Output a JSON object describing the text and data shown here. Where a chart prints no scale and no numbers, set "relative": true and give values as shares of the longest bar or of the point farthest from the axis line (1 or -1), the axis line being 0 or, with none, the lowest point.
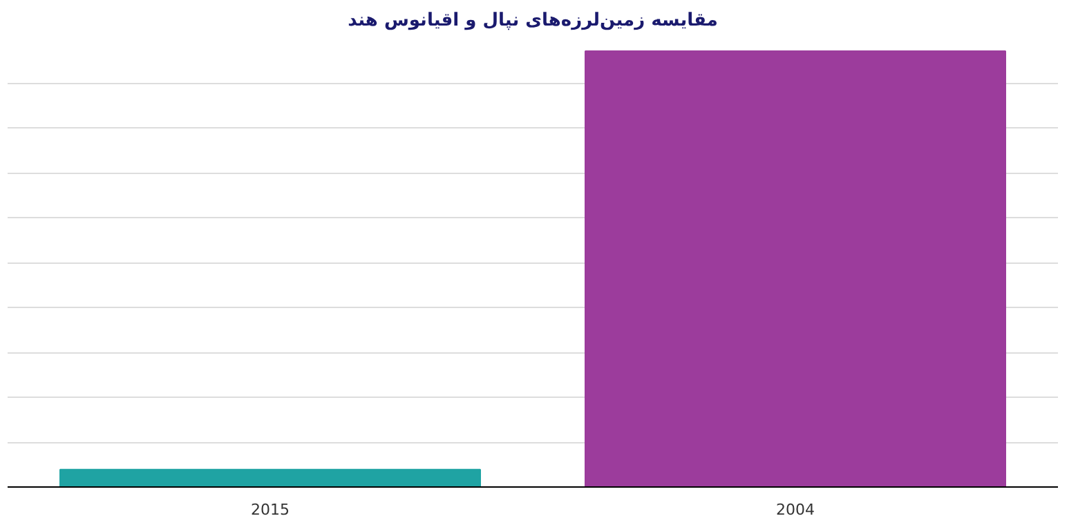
{
  "chart_data": {
    "type": "bar",
    "title": "مقایسه زمین‌لرزه‌های نپال و اقیانوس هند",
    "categories": [
      "2015",
      "2004"
    ],
    "values": [
      0.04,
      1
    ],
    "colors": [
      "#1fa3a3",
      "#9c3c9c"
    ],
    "relative": true,
    "grid": "y"
  }
}
